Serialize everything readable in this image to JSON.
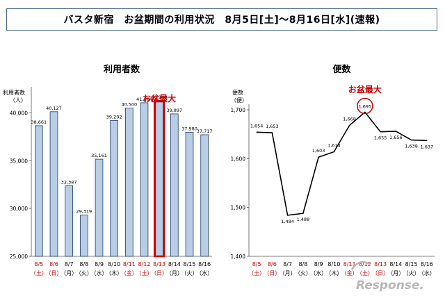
{
  "header": {
    "title": "バスタ新宿　お盆期間の利用状況　8月5日[土]～8月16日[水](速報)"
  },
  "chart_data": [
    {
      "type": "bar",
      "title": "利用者数",
      "ylabel": "利用者数\n（人）",
      "ylim": [
        25000,
        42000
      ],
      "yticks": [
        "25,000",
        "30,000",
        "35,000",
        "40,000"
      ],
      "ytick_values": [
        25000,
        30000,
        35000,
        40000
      ],
      "categories": [
        "8/5",
        "8/6",
        "8/7",
        "8/8",
        "8/9",
        "8/10",
        "8/11",
        "8/12",
        "8/13",
        "8/14",
        "8/15",
        "8/16"
      ],
      "weekdays": [
        "（土）",
        "（日）",
        "（月）",
        "（火）",
        "（水）",
        "（木）",
        "（金）",
        "（土）",
        "（日）",
        "（月）",
        "（火）",
        "（水）"
      ],
      "red_categories": [
        0,
        1,
        6,
        7,
        8
      ],
      "values": [
        38661,
        40127,
        32387,
        29319,
        35161,
        39202,
        40500,
        41064,
        41140,
        39897,
        37980,
        37717
      ],
      "data_labels": [
        "38,661",
        "40,127",
        "32,387",
        "29,319",
        "35,161",
        "39,202",
        "40,500",
        "41,064",
        "41,140",
        "39,897",
        "37,980",
        "37,717"
      ],
      "highlight_index": 8,
      "annotation": "お盆最大",
      "bar_color": "#b9cde4",
      "highlight_color": "#cc0000"
    },
    {
      "type": "line",
      "title": "便数",
      "ylabel": "便数\n（便）",
      "ylim": [
        1400,
        1700
      ],
      "yticks": [
        "1,400",
        "1,500",
        "1,600",
        "1,700"
      ],
      "ytick_values": [
        1400,
        1500,
        1600,
        1700
      ],
      "categories": [
        "8/5",
        "8/6",
        "8/7",
        "8/8",
        "8/9",
        "8/10",
        "8/11",
        "8/12",
        "8/13",
        "8/14",
        "8/15",
        "8/16"
      ],
      "weekdays": [
        "（土）",
        "（日）",
        "（月）",
        "（火）",
        "（水）",
        "（木）",
        "（金）",
        "（土）",
        "（日）",
        "（月）",
        "（火）",
        "（水）"
      ],
      "red_categories": [
        0,
        1,
        6,
        7,
        8
      ],
      "values": [
        1654,
        1653,
        1484,
        1488,
        1603,
        1614,
        1668,
        1695,
        1655,
        1656,
        1638,
        1637
      ],
      "data_labels": [
        "1,654",
        "1,653",
        "1,484",
        "1,488",
        "1,603",
        "1,614",
        "1,668",
        "1,695",
        "1,655",
        "1,656",
        "1,638",
        "1,637"
      ],
      "highlight_index": 7,
      "annotation": "お盆最大",
      "line_color": "#000000",
      "highlight_color": "#cc0000"
    }
  ],
  "watermark": "Response."
}
